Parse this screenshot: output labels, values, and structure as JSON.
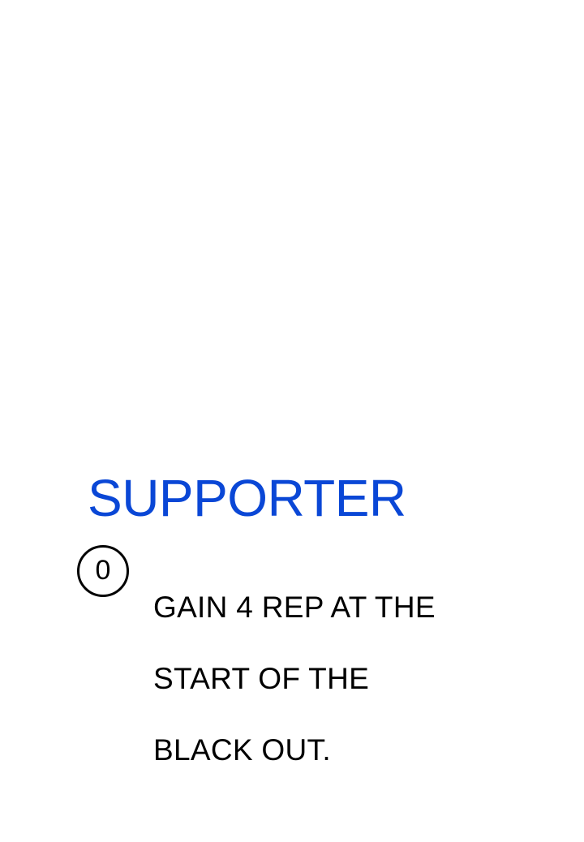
{
  "card": {
    "title": "SUPPORTER",
    "title_color": "#0a47d6",
    "cost": "0",
    "ability_lines": [
      "GAIN 4 REP AT THE",
      "START OF THE",
      "BLACK OUT."
    ]
  }
}
